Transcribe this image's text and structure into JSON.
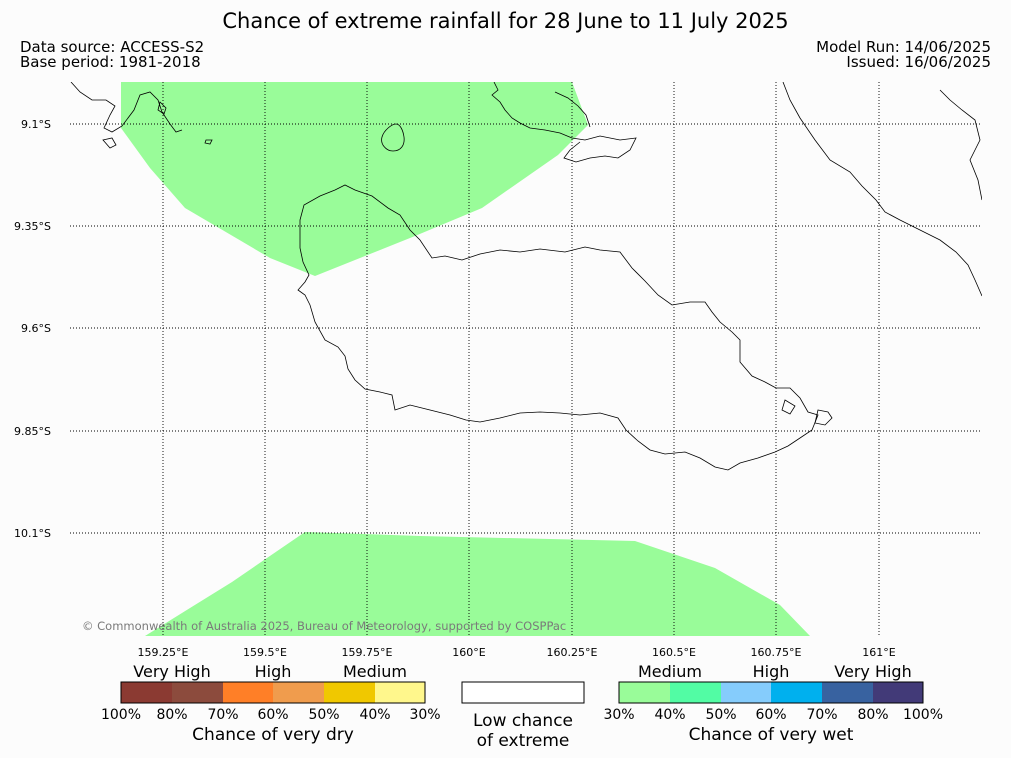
{
  "title": "Chance of extreme rainfall for 28 June to 11 July 2025",
  "data_source": "Data source: ACCESS-S2",
  "base_period": "Base period: 1981-2018",
  "model_run": "Model Run: 14/06/2025",
  "issued": "Issued: 16/06/2025",
  "copyright": "© Commonwealth of Australia 2025, Bureau of Meteorology, supported by COSPPac",
  "map": {
    "lat_labels": [
      "9.1°S",
      "9.35°S",
      "9.6°S",
      "9.85°S",
      "10.1°S"
    ],
    "lon_labels": [
      "159.25°E",
      "159.5°E",
      "159.75°E",
      "160°E",
      "160.25°E",
      "160.5°E",
      "160.75°E",
      "161°E"
    ],
    "regions": [
      {
        "name": "north-medium-wet-region",
        "category": "Medium",
        "color": "#99fc99"
      },
      {
        "name": "south-medium-wet-region",
        "category": "Medium",
        "color": "#99fc99"
      }
    ]
  },
  "legend": {
    "dry": {
      "headers": [
        "Very High",
        "High",
        "Medium"
      ],
      "colors": [
        "#8b3a32",
        "#8c4b3d",
        "#ff7f27",
        "#f09c4d",
        "#f0c800",
        "#fff78c"
      ],
      "ticks": [
        "100%",
        "80%",
        "70%",
        "60%",
        "50%",
        "40%",
        "30%"
      ],
      "caption": "Chance of very dry"
    },
    "low": {
      "color": "#ffffff",
      "caption_line1": "Low chance",
      "caption_line2": "of extreme"
    },
    "wet": {
      "headers": [
        "Medium",
        "High",
        "Very High"
      ],
      "colors": [
        "#99fc99",
        "#52fca4",
        "#85ccfc",
        "#00b0ee",
        "#3862a0",
        "#423a78"
      ],
      "ticks": [
        "30%",
        "40%",
        "50%",
        "60%",
        "70%",
        "80%",
        "100%"
      ],
      "caption": "Chance of very wet"
    }
  }
}
